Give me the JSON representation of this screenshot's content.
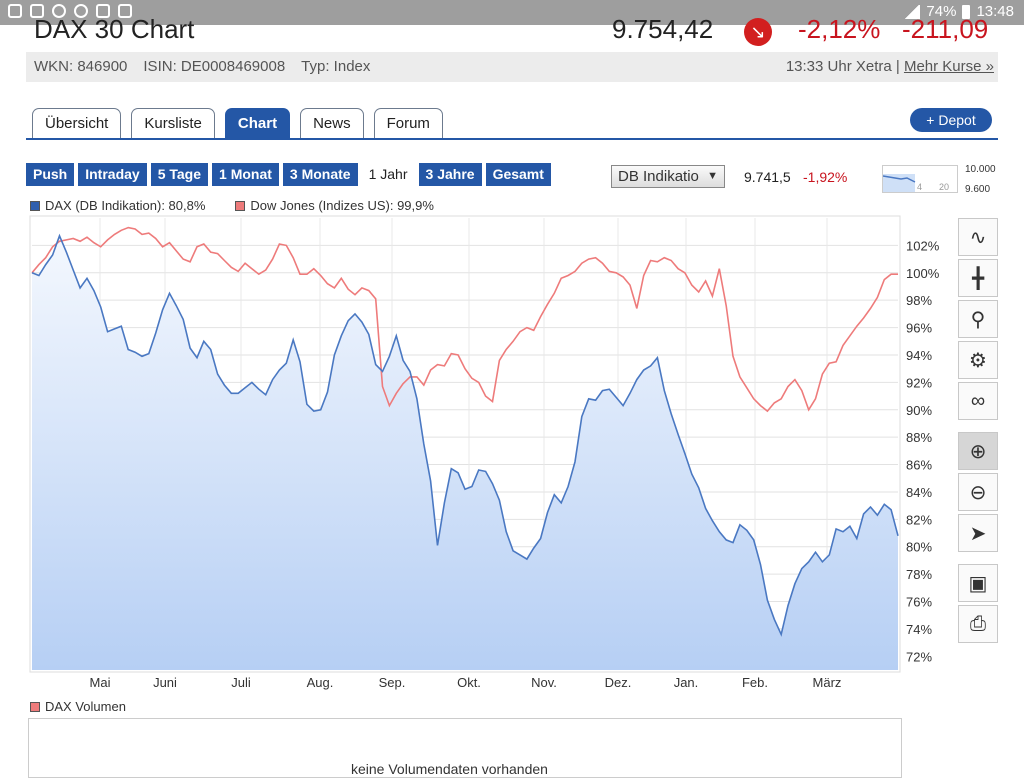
{
  "statusbar": {
    "battery": "74%",
    "time": "13:48"
  },
  "header": {
    "title": "DAX 30 Chart",
    "price": "9.754,42",
    "change_pct": "-2,12%",
    "change_abs": "-211,09"
  },
  "info": {
    "wkn": "WKN: 846900",
    "isin": "ISIN: DE0008469008",
    "type": "Typ: Index",
    "time_label": "13:33 Uhr Xetra |",
    "more_link": "Mehr Kurse »"
  },
  "tabs": [
    "Übersicht",
    "Kursliste",
    "Chart",
    "News",
    "Forum"
  ],
  "active_tab": 2,
  "depot_label": "+ Depot",
  "ranges": [
    "Push",
    "Intraday",
    "5 Tage",
    "1 Monat",
    "3 Monate",
    "1 Jahr",
    "3 Jahre",
    "Gesamt"
  ],
  "active_range": 5,
  "indicator": {
    "selected": "DB Indikatio",
    "value": "9.741,5",
    "change": "-1,92%"
  },
  "mini_chart": {
    "top_label": "10.000",
    "bottom_label": "9.600",
    "tick_a": "4",
    "tick_b": "20"
  },
  "colors": {
    "dax": "#4a78c2",
    "dow": "#ee7b7b",
    "dax_fill_top": "#f4f8fe",
    "dax_fill_bottom": "#b6cff4",
    "accent": "#2457a6",
    "negative": "#c8141e"
  },
  "tools": [
    "line-chart-icon",
    "ohlc-chart-icon",
    "zoom-area-icon",
    "settings-icon",
    "link-icon",
    "zoom-in-icon",
    "zoom-out-icon",
    "pointer-icon",
    "save-icon",
    "print-icon"
  ],
  "chart_data": {
    "type": "line",
    "x_ticks": [
      "Mai",
      "Juni",
      "Juli",
      "Aug.",
      "Sep.",
      "Okt.",
      "Nov.",
      "Dez.",
      "Jan.",
      "Feb.",
      "März"
    ],
    "y_ticks": [
      "102%",
      "100%",
      "98%",
      "96%",
      "94%",
      "92%",
      "90%",
      "88%",
      "86%",
      "84%",
      "82%",
      "80%",
      "78%",
      "76%",
      "74%",
      "72%"
    ],
    "ylim": [
      71,
      104
    ],
    "series": [
      {
        "name": "DAX (DB Indikation): 80,8%",
        "values": [
          100,
          99.8,
          100.6,
          101.3,
          102.7,
          101.5,
          100.2,
          98.9,
          99.6,
          98.7,
          97.5,
          95.7,
          95.9,
          96.1,
          94.4,
          94.2,
          93.9,
          94.1,
          95.6,
          97.3,
          98.5,
          97.6,
          96.6,
          94.5,
          93.8,
          95.0,
          94.4,
          92.6,
          91.8,
          91.2,
          91.2,
          91.6,
          92.0,
          91.5,
          91.1,
          92.2,
          92.9,
          93.4,
          95.1,
          93.5,
          90.4,
          89.9,
          90.0,
          91.3,
          94.0,
          95.4,
          96.5,
          97.0,
          96.4,
          95.5,
          93.3,
          92.8,
          93.9,
          95.4,
          93.6,
          92.8,
          90.8,
          87.5,
          84.8,
          80.1,
          83.2,
          85.7,
          85.4,
          84.2,
          84.4,
          85.6,
          85.5,
          84.6,
          83.4,
          81.1,
          79.7,
          79.4,
          79.1,
          79.9,
          80.6,
          82.5,
          83.8,
          83.2,
          84.4,
          86.2,
          89.5,
          90.8,
          90.7,
          91.4,
          91.5,
          90.9,
          90.3,
          91.2,
          92.2,
          92.9,
          93.2,
          93.8,
          91.4,
          89.7,
          88.2,
          86.8,
          85.3,
          84.3,
          82.8,
          81.9,
          81.1,
          80.5,
          80.3,
          81.6,
          81.2,
          80.5,
          78.7,
          76.1,
          74.7,
          73.6,
          75.7,
          77.3,
          78.4,
          78.9,
          79.6,
          78.9,
          79.4,
          81.3,
          81.1,
          81.5,
          80.6,
          82.4,
          82.9,
          82.3,
          83.1,
          82.7,
          80.8
        ]
      },
      {
        "name": "Dow Jones (Indizes US): 99,9%",
        "values": [
          100,
          100.6,
          101.1,
          101.9,
          102.3,
          102.4,
          102.5,
          102.3,
          102.6,
          102.2,
          101.9,
          102.4,
          102.8,
          103.1,
          103.3,
          103.2,
          102.8,
          102.9,
          102.5,
          101.9,
          102.2,
          101.6,
          101.0,
          100.8,
          101.9,
          102.1,
          101.5,
          101.4,
          100.9,
          100.4,
          100.1,
          100.7,
          100.3,
          99.9,
          100.2,
          101.0,
          102.1,
          102.0,
          101.1,
          99.9,
          99.9,
          100.3,
          99.8,
          99.2,
          98.9,
          99.6,
          98.8,
          98.4,
          98.9,
          98.7,
          98.1,
          91.7,
          90.3,
          91.2,
          91.9,
          92.4,
          92.4,
          91.8,
          92.9,
          93.3,
          93.2,
          94.1,
          94.0,
          93.0,
          92.3,
          92.0,
          91.0,
          90.6,
          93.6,
          94.4,
          95.0,
          95.7,
          96.0,
          95.8,
          96.8,
          97.7,
          98.5,
          99.6,
          99.8,
          100.1,
          100.7,
          101.0,
          101.1,
          100.7,
          100.1,
          100.0,
          99.7,
          99.1,
          97.4,
          99.8,
          100.9,
          100.8,
          101.1,
          100.9,
          100.3,
          100.0,
          99.1,
          98.6,
          99.4,
          98.3,
          100.3,
          97.6,
          93.9,
          92.4,
          91.6,
          90.8,
          90.3,
          89.9,
          90.5,
          90.8,
          91.7,
          92.2,
          91.4,
          90.0,
          90.8,
          92.6,
          93.4,
          93.5,
          94.7,
          95.4,
          96.1,
          96.7,
          97.4,
          98.2,
          99.5,
          99.9,
          99.9
        ]
      }
    ],
    "grid": true,
    "legend": "top-left"
  },
  "volume": {
    "legend": "DAX Volumen",
    "message": "keine Volumendaten vorhanden"
  }
}
